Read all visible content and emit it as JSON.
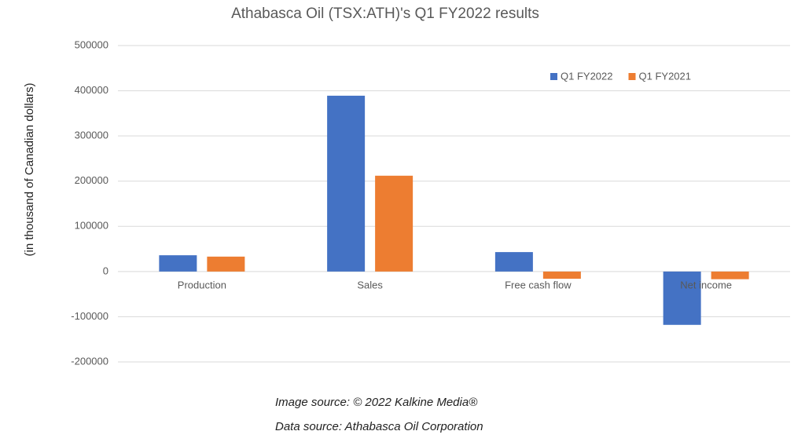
{
  "chart_data": {
    "type": "bar",
    "title": "Athabasca Oil (TSX:ATH)'s Q1 FY2022 results",
    "y_label": "(in thousand of Canadian dollars)",
    "annotations": [
      "Image source: © 2022 Kalkine Media®",
      "Data source: Athabasca Oil Corporation"
    ],
    "categories": [
      "Production",
      "Sales",
      "Free cash flow",
      "Net income"
    ],
    "series": [
      {
        "name": "Q1 FY2022",
        "color": "#4472c4",
        "values": [
          36000,
          389000,
          43000,
          -118000
        ]
      },
      {
        "name": "Q1 FY2021",
        "color": "#ed7d31",
        "values": [
          33000,
          212000,
          -16000,
          -17000
        ]
      }
    ],
    "ylim": [
      -200000,
      500000
    ],
    "yticks": [
      -200000,
      -100000,
      0,
      100000,
      200000,
      300000,
      400000,
      500000
    ],
    "grid": true,
    "legend": "top-right"
  }
}
